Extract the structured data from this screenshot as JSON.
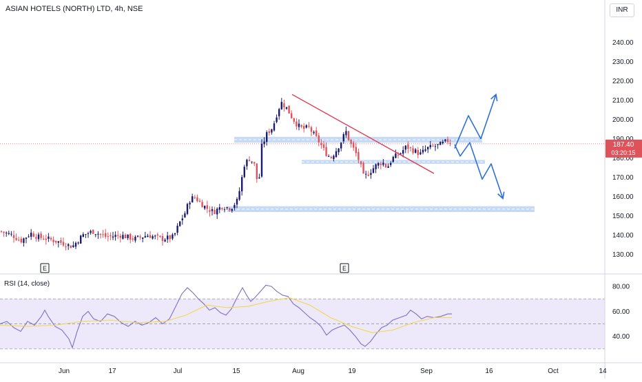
{
  "header": {
    "title": "ASIAN HOTELS (NORTH) LTD, 4h, NSE",
    "currency": "INR"
  },
  "price_badge": {
    "price": "187.40",
    "countdown": "03:20:15"
  },
  "rsi_pane": {
    "label": "RSI (14, close)"
  },
  "earnings_marker": "E",
  "colors": {
    "up": "#1a1a6e",
    "down": "#e0525a",
    "trendline": "#e0334a",
    "projection": "#2d6fd6",
    "zone": "#bcd3f5",
    "rsi_line": "#7b6fc4",
    "rsi_ma": "#f0d84a",
    "rsi_band": "#ede9fb",
    "price_line": "#e0525a"
  },
  "chart_data": [
    {
      "type": "candlestick",
      "ylim": [
        122,
        252
      ],
      "y_ticks": [
        "240.00",
        "230.00",
        "220.00",
        "210.00",
        "200.00",
        "190.00",
        "180.00",
        "170.00",
        "160.00",
        "150.00",
        "140.00",
        "130.00"
      ],
      "x_ticks": [
        "Jun",
        "17",
        "Jul",
        "15",
        "Aug",
        "19",
        "Sep",
        "16",
        "Oct",
        "14"
      ],
      "last_price": 187.4,
      "close_path": [
        [
          0,
          142
        ],
        [
          18,
          140
        ],
        [
          30,
          137
        ],
        [
          45,
          141
        ],
        [
          55,
          139
        ],
        [
          70,
          138
        ],
        [
          90,
          136
        ],
        [
          105,
          134
        ],
        [
          120,
          140
        ],
        [
          135,
          142
        ],
        [
          155,
          139
        ],
        [
          175,
          140
        ],
        [
          195,
          138
        ],
        [
          215,
          140
        ],
        [
          235,
          138
        ],
        [
          252,
          139
        ],
        [
          260,
          146
        ],
        [
          268,
          151
        ],
        [
          275,
          158
        ],
        [
          282,
          160
        ],
        [
          290,
          157
        ],
        [
          300,
          154
        ],
        [
          310,
          152
        ],
        [
          322,
          155
        ],
        [
          335,
          154
        ],
        [
          345,
          158
        ],
        [
          355,
          177
        ],
        [
          363,
          180
        ],
        [
          370,
          176
        ],
        [
          375,
          164
        ],
        [
          380,
          186
        ],
        [
          388,
          193
        ],
        [
          396,
          196
        ],
        [
          402,
          203
        ],
        [
          408,
          209
        ],
        [
          416,
          206
        ],
        [
          424,
          201
        ],
        [
          432,
          197
        ],
        [
          440,
          195
        ],
        [
          448,
          196
        ],
        [
          456,
          192
        ],
        [
          464,
          188
        ],
        [
          472,
          183
        ],
        [
          480,
          180
        ],
        [
          488,
          184
        ],
        [
          496,
          189
        ],
        [
          502,
          194
        ],
        [
          508,
          188
        ],
        [
          516,
          183
        ],
        [
          522,
          178
        ],
        [
          528,
          170
        ],
        [
          535,
          172
        ],
        [
          545,
          176
        ],
        [
          555,
          178
        ],
        [
          562,
          175
        ],
        [
          570,
          180
        ],
        [
          580,
          182
        ],
        [
          590,
          186
        ],
        [
          600,
          184
        ],
        [
          610,
          182
        ],
        [
          620,
          185
        ],
        [
          630,
          186
        ],
        [
          640,
          187
        ],
        [
          650,
          189
        ],
        [
          656,
          187.4
        ]
      ],
      "zones": [
        {
          "low": 188,
          "high": 191
        },
        {
          "low": 177,
          "high": 179
        },
        {
          "low": 152,
          "high": 155
        }
      ],
      "trendline": [
        [
          424,
          213
        ],
        [
          630,
          172
        ]
      ],
      "projections": [
        {
          "path": [
            [
              660,
              185
            ],
            [
              680,
              202
            ],
            [
              698,
              190
            ],
            [
              720,
              213
            ]
          ]
        },
        {
          "path": [
            [
              660,
              187
            ],
            [
              668,
              181
            ],
            [
              682,
              188
            ],
            [
              700,
              169
            ],
            [
              713,
              177
            ],
            [
              730,
              159
            ]
          ]
        }
      ],
      "earnings": [
        65,
        500
      ]
    },
    {
      "type": "line",
      "ylim": [
        20,
        90
      ],
      "y_ticks": [
        "80.00",
        "60.00",
        "40.00"
      ],
      "bands": [
        30,
        50,
        70
      ],
      "series": [
        {
          "values": [
            [
              0,
              50
            ],
            [
              10,
              52
            ],
            [
              20,
              47
            ],
            [
              30,
              44
            ],
            [
              40,
              52
            ],
            [
              50,
              49
            ],
            [
              60,
              56
            ],
            [
              65,
              61
            ],
            [
              70,
              56
            ],
            [
              80,
              48
            ],
            [
              90,
              45
            ],
            [
              100,
              38
            ],
            [
              105,
              31
            ],
            [
              112,
              44
            ],
            [
              120,
              56
            ],
            [
              128,
              60
            ],
            [
              136,
              54
            ],
            [
              146,
              52
            ],
            [
              156,
              58
            ],
            [
              166,
              56
            ],
            [
              176,
              51
            ],
            [
              186,
              48
            ],
            [
              196,
              52
            ],
            [
              206,
              49
            ],
            [
              216,
              51
            ],
            [
              226,
              55
            ],
            [
              236,
              50
            ],
            [
              246,
              54
            ],
            [
              256,
              65
            ],
            [
              264,
              74
            ],
            [
              272,
              79
            ],
            [
              280,
              75
            ],
            [
              288,
              70
            ],
            [
              296,
              66
            ],
            [
              304,
              61
            ],
            [
              312,
              63
            ],
            [
              320,
              59
            ],
            [
              328,
              57
            ],
            [
              336,
              62
            ],
            [
              344,
              71
            ],
            [
              352,
              79
            ],
            [
              358,
              73
            ],
            [
              364,
              68
            ],
            [
              370,
              71
            ],
            [
              378,
              76
            ],
            [
              386,
              81
            ],
            [
              394,
              80
            ],
            [
              402,
              76
            ],
            [
              410,
              73
            ],
            [
              418,
              72
            ],
            [
              426,
              66
            ],
            [
              434,
              63
            ],
            [
              442,
              59
            ],
            [
              450,
              55
            ],
            [
              458,
              52
            ],
            [
              466,
              48
            ],
            [
              474,
              41
            ],
            [
              482,
              45
            ],
            [
              490,
              47
            ],
            [
              500,
              49
            ],
            [
              508,
              45
            ],
            [
              516,
              40
            ],
            [
              524,
              34
            ],
            [
              530,
              32
            ],
            [
              538,
              36
            ],
            [
              546,
              42
            ],
            [
              554,
              47
            ],
            [
              562,
              49
            ],
            [
              570,
              53
            ],
            [
              580,
              55
            ],
            [
              590,
              57
            ],
            [
              596,
              61
            ],
            [
              604,
              58
            ],
            [
              612,
              54
            ],
            [
              620,
              56
            ],
            [
              630,
              55
            ],
            [
              640,
              56
            ],
            [
              650,
              58
            ],
            [
              656,
              58
            ]
          ]
        },
        {
          "values": [
            [
              0,
              49
            ],
            [
              40,
              48
            ],
            [
              80,
              49
            ],
            [
              120,
              52
            ],
            [
              160,
              53
            ],
            [
              200,
              51
            ],
            [
              240,
              52
            ],
            [
              270,
              57
            ],
            [
              300,
              65
            ],
            [
              330,
              63
            ],
            [
              360,
              64
            ],
            [
              390,
              68
            ],
            [
              420,
              71
            ],
            [
              450,
              65
            ],
            [
              480,
              55
            ],
            [
              510,
              48
            ],
            [
              540,
              43
            ],
            [
              570,
              45
            ],
            [
              600,
              51
            ],
            [
              630,
              55
            ],
            [
              656,
              55
            ]
          ]
        }
      ]
    }
  ]
}
